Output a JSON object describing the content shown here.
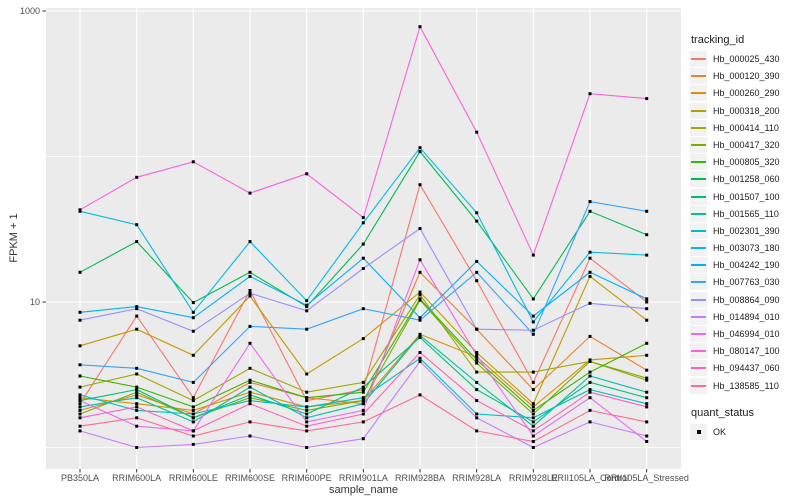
{
  "panel": {
    "bg": "#EBEBEB",
    "grid": "#FFFFFF",
    "tick_color": "#333333",
    "tick_label_color": "#4D4D4D"
  },
  "chart_data": {
    "type": "line",
    "title": "",
    "xlabel": "sample_name",
    "ylabel": "FPKM + 1",
    "y_scale": "log10",
    "ylim": [
      0.7,
      1100
    ],
    "grid": "on",
    "legend_position": "right",
    "y_ticks": [
      {
        "value": 1000,
        "label": "1000"
      },
      {
        "value": 10,
        "label": "10"
      }
    ],
    "y_minor_gridlines": [
      100,
      1
    ],
    "marker": "black-square",
    "categories": [
      "PB350LA",
      "RRIM600LA",
      "RRIM600LE",
      "RRIM600SE",
      "RRIM600PE",
      "RRIM901LA",
      "RRIM928BA",
      "RRIM928LA",
      "RRIM928LE",
      "RRII105LA_Control",
      "RRII105LA_Stressed"
    ],
    "legend_title": "tracking_id",
    "legend2_title": "quant_status",
    "legend2_items": [
      {
        "label": "OK",
        "marker": "black-square"
      }
    ],
    "series": [
      {
        "name": "Hb_000025_430",
        "color": "#F8766D",
        "values": [
          2.0,
          8.0,
          2.2,
          12.0,
          2.1,
          2.5,
          64,
          14,
          2.8,
          20,
          10
        ]
      },
      {
        "name": "Hb_000120_390",
        "color": "#EA8331",
        "values": [
          1.8,
          2.3,
          1.7,
          2.8,
          2.2,
          2.0,
          16,
          6.5,
          2.5,
          5.8,
          3.4
        ]
      },
      {
        "name": "Hb_000260_290",
        "color": "#D89000",
        "values": [
          2.2,
          2.0,
          1.8,
          2.4,
          1.9,
          2.1,
          6.0,
          4.2,
          1.9,
          4.0,
          4.3
        ]
      },
      {
        "name": "Hb_000318_200",
        "color": "#C09B00",
        "values": [
          5.0,
          6.5,
          4.3,
          11.0,
          3.2,
          5.6,
          11.7,
          4.5,
          2.0,
          15,
          7.5
        ]
      },
      {
        "name": "Hb_000414_110",
        "color": "#A3A500",
        "values": [
          2.6,
          3.2,
          2.1,
          3.5,
          2.4,
          2.8,
          11.2,
          3.3,
          3.3,
          3.9,
          2.9
        ]
      },
      {
        "name": "Hb_000417_320",
        "color": "#7CAE00",
        "values": [
          1.7,
          2.4,
          1.6,
          2.2,
          1.8,
          2.1,
          10.3,
          3.8,
          1.7,
          3.9,
          3.0
        ]
      },
      {
        "name": "Hb_000805_320",
        "color": "#39B600",
        "values": [
          3.1,
          2.6,
          1.9,
          2.9,
          2.2,
          2.4,
          10.5,
          4.0,
          1.8,
          3.3,
          5.2
        ]
      },
      {
        "name": "Hb_001258_060",
        "color": "#00BB4E",
        "values": [
          16,
          26,
          9.9,
          16,
          9.3,
          25,
          108,
          36,
          10.5,
          42,
          29
        ]
      },
      {
        "name": "Hb_001507_100",
        "color": "#00BF7D",
        "values": [
          2.1,
          2.5,
          1.6,
          2.3,
          1.7,
          2.6,
          5.7,
          2.5,
          1.5,
          2.8,
          2.2
        ]
      },
      {
        "name": "Hb_001565_110",
        "color": "#00C1A3",
        "values": [
          1.9,
          2.2,
          1.5,
          2.6,
          1.6,
          2.0,
          5.9,
          2.8,
          1.4,
          3.1,
          2.4
        ]
      },
      {
        "name": "Hb_002301_390",
        "color": "#00BFC4",
        "values": [
          2.3,
          1.8,
          1.7,
          2.1,
          1.9,
          2.2,
          4.1,
          1.7,
          1.6,
          2.5,
          2.0
        ]
      },
      {
        "name": "Hb_003073_180",
        "color": "#00BAE0",
        "values": [
          42,
          34,
          8.5,
          26,
          10.2,
          35,
          115,
          41,
          7.3,
          22,
          21
        ]
      },
      {
        "name": "Hb_004242_190",
        "color": "#00B0F6",
        "values": [
          8.5,
          9.3,
          7.8,
          15,
          9.5,
          20,
          7.8,
          19,
          8.0,
          16,
          10.5
        ]
      },
      {
        "name": "Hb_007763_030",
        "color": "#35A2FF",
        "values": [
          3.7,
          3.5,
          2.8,
          6.8,
          6.5,
          9.0,
          7.5,
          16,
          6.0,
          49,
          42
        ]
      },
      {
        "name": "Hb_008864_090",
        "color": "#9590FF",
        "values": [
          7.5,
          9.0,
          6.3,
          11.5,
          8.7,
          17,
          32,
          6.5,
          6.4,
          9.8,
          9.0
        ]
      },
      {
        "name": "Hb_014894_010",
        "color": "#C77CFF",
        "values": [
          1.3,
          1.0,
          1.05,
          1.2,
          1.0,
          1.15,
          3.9,
          1.6,
          1.0,
          1.5,
          1.2
        ]
      },
      {
        "name": "Hb_046994_010",
        "color": "#E76BF3",
        "values": [
          2.1,
          1.4,
          1.3,
          5.2,
          1.5,
          1.8,
          19.5,
          4.3,
          1.2,
          2.2,
          1.1
        ]
      },
      {
        "name": "Hb_080147_100",
        "color": "#FA62DB",
        "values": [
          43,
          72,
          92,
          56,
          76,
          38,
          780,
          147,
          21,
          270,
          250
        ]
      },
      {
        "name": "Hb_094437_060",
        "color": "#FF62BC",
        "values": [
          1.6,
          1.9,
          1.3,
          2.0,
          1.4,
          1.7,
          4.5,
          2.1,
          1.3,
          2.4,
          1.9
        ]
      },
      {
        "name": "Hb_138585_110",
        "color": "#FF6A98",
        "values": [
          1.4,
          1.6,
          1.2,
          1.5,
          1.3,
          1.5,
          2.3,
          1.3,
          1.1,
          1.8,
          1.5
        ]
      }
    ]
  }
}
